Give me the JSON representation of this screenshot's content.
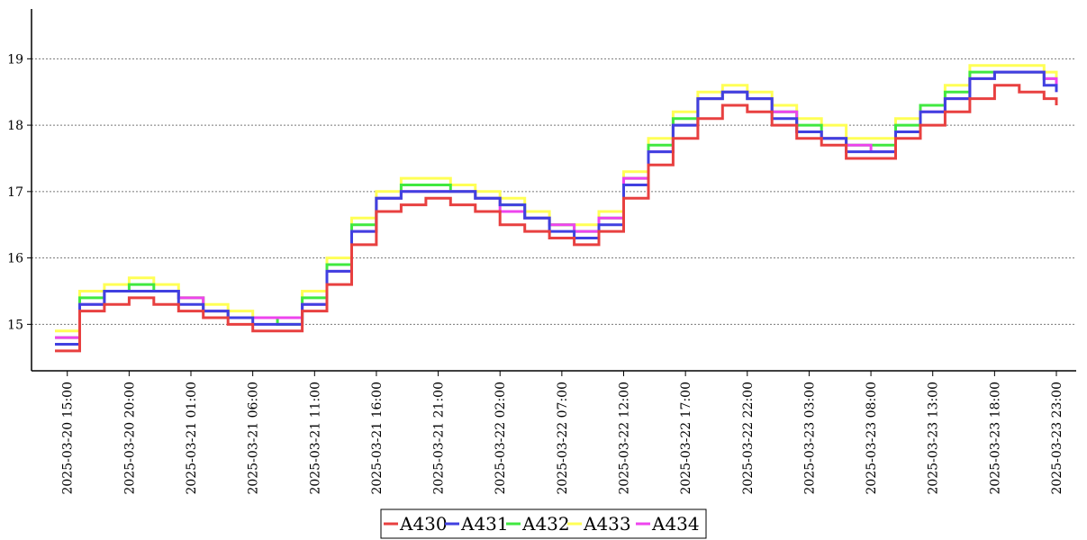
{
  "chart_data": {
    "type": "line",
    "step": true,
    "title": "",
    "xlabel": "",
    "ylabel": "",
    "ylim": [
      14.3,
      19.75
    ],
    "yticks": [
      15,
      16,
      17,
      18,
      19
    ],
    "grid": "horizontal dotted",
    "legend_position": "bottom-center",
    "x_range_hours": [
      -1,
      81
    ],
    "x_tick_labels": [
      "2025-03-20  15:00",
      "2025-03-20  20:00",
      "2025-03-21  01:00",
      "2025-03-21  06:00",
      "2025-03-21  11:00",
      "2025-03-21  16:00",
      "2025-03-21  21:00",
      "2025-03-22  02:00",
      "2025-03-22  07:00",
      "2025-03-22  12:00",
      "2025-03-22  17:00",
      "2025-03-22  22:00",
      "2025-03-23  03:00",
      "2025-03-23  08:00",
      "2025-03-23  13:00",
      "2025-03-23  18:00",
      "2025-03-23  23:00"
    ],
    "x": [
      "2025-03-20 14:00",
      "2025-03-20 16:00",
      "2025-03-20 18:00",
      "2025-03-20 20:00",
      "2025-03-20 22:00",
      "2025-03-21 00:00",
      "2025-03-21 02:00",
      "2025-03-21 04:00",
      "2025-03-21 06:00",
      "2025-03-21 08:00",
      "2025-03-21 10:00",
      "2025-03-21 12:00",
      "2025-03-21 14:00",
      "2025-03-21 16:00",
      "2025-03-21 18:00",
      "2025-03-21 20:00",
      "2025-03-21 22:00",
      "2025-03-22 00:00",
      "2025-03-22 02:00",
      "2025-03-22 04:00",
      "2025-03-22 06:00",
      "2025-03-22 08:00",
      "2025-03-22 10:00",
      "2025-03-22 12:00",
      "2025-03-22 14:00",
      "2025-03-22 16:00",
      "2025-03-22 18:00",
      "2025-03-22 20:00",
      "2025-03-22 22:00",
      "2025-03-23 00:00",
      "2025-03-23 02:00",
      "2025-03-23 04:00",
      "2025-03-23 06:00",
      "2025-03-23 08:00",
      "2025-03-23 10:00",
      "2025-03-23 12:00",
      "2025-03-23 14:00",
      "2025-03-23 16:00",
      "2025-03-23 18:00",
      "2025-03-23 20:00",
      "2025-03-23 22:00",
      "2025-03-23 23:00"
    ],
    "series": [
      {
        "name": "A430",
        "color": "#e84040",
        "values": [
          14.6,
          15.2,
          15.3,
          15.4,
          15.3,
          15.2,
          15.1,
          15.0,
          14.9,
          14.9,
          15.2,
          15.6,
          16.2,
          16.7,
          16.8,
          16.9,
          16.8,
          16.7,
          16.5,
          16.4,
          16.3,
          16.2,
          16.4,
          16.9,
          17.4,
          17.8,
          18.1,
          18.3,
          18.2,
          18.0,
          17.8,
          17.7,
          17.5,
          17.5,
          17.8,
          18.0,
          18.2,
          18.4,
          18.6,
          18.5,
          18.4,
          18.3
        ]
      },
      {
        "name": "A431",
        "color": "#4040e0",
        "values": [
          14.7,
          15.3,
          15.5,
          15.5,
          15.5,
          15.3,
          15.2,
          15.1,
          15.0,
          15.0,
          15.3,
          15.8,
          16.4,
          16.9,
          17.0,
          17.0,
          17.0,
          16.9,
          16.8,
          16.6,
          16.4,
          16.3,
          16.5,
          17.1,
          17.6,
          18.0,
          18.4,
          18.5,
          18.4,
          18.1,
          17.9,
          17.8,
          17.6,
          17.6,
          17.9,
          18.2,
          18.4,
          18.7,
          18.8,
          18.8,
          18.6,
          18.5
        ]
      },
      {
        "name": "A432",
        "color": "#40e840",
        "values": [
          14.8,
          15.4,
          15.5,
          15.6,
          15.5,
          15.4,
          15.2,
          15.1,
          15.1,
          15.0,
          15.4,
          15.9,
          16.5,
          16.9,
          17.1,
          17.1,
          17.0,
          16.9,
          16.8,
          16.6,
          16.5,
          16.4,
          16.6,
          17.2,
          17.7,
          18.1,
          18.4,
          18.5,
          18.4,
          18.2,
          18.0,
          17.8,
          17.7,
          17.7,
          18.0,
          18.3,
          18.5,
          18.8,
          18.8,
          18.8,
          18.7,
          18.6
        ]
      },
      {
        "name": "A433",
        "color": "#ffff55",
        "values": [
          14.9,
          15.5,
          15.6,
          15.7,
          15.6,
          15.4,
          15.3,
          15.2,
          15.1,
          15.1,
          15.5,
          16.0,
          16.6,
          17.0,
          17.2,
          17.2,
          17.1,
          17.0,
          16.9,
          16.7,
          16.5,
          16.5,
          16.7,
          17.3,
          17.8,
          18.2,
          18.5,
          18.6,
          18.5,
          18.3,
          18.1,
          18.0,
          17.8,
          17.8,
          18.1,
          18.3,
          18.6,
          18.9,
          18.9,
          18.9,
          18.8,
          18.6
        ]
      },
      {
        "name": "A434",
        "color": "#ee44ee",
        "values": [
          14.8,
          15.3,
          15.5,
          15.5,
          15.5,
          15.4,
          15.2,
          15.1,
          15.1,
          15.1,
          15.3,
          15.8,
          16.4,
          16.9,
          17.0,
          17.0,
          17.0,
          16.9,
          16.7,
          16.6,
          16.5,
          16.4,
          16.6,
          17.2,
          17.6,
          18.0,
          18.4,
          18.5,
          18.4,
          18.2,
          17.9,
          17.8,
          17.7,
          17.6,
          17.9,
          18.2,
          18.4,
          18.7,
          18.8,
          18.8,
          18.7,
          18.5
        ]
      }
    ]
  },
  "legend": {
    "items": [
      "A430",
      "A431",
      "A432",
      "A433",
      "A434"
    ]
  }
}
